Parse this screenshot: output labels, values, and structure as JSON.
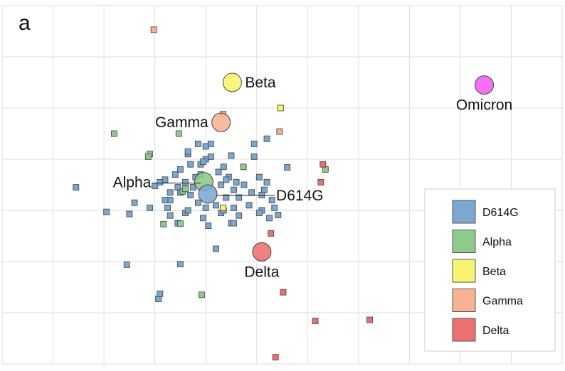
{
  "chart_data": {
    "type": "scatter",
    "panel_label": "a",
    "title": "",
    "xlabel": "",
    "ylabel": "",
    "xlim": [
      0,
      11
    ],
    "ylim": [
      0,
      7
    ],
    "grid": true,
    "legend_position": "bottom-right",
    "colors": {
      "D614G": "#7ba7d1",
      "Alpha": "#8ccb8a",
      "Beta": "#f8f46f",
      "Gamma": "#f7b392",
      "Delta": "#ee6f6f",
      "Omicron": "#f15cf0"
    },
    "legend": [
      {
        "name": "D614G"
      },
      {
        "name": "Alpha"
      },
      {
        "name": "Beta"
      },
      {
        "name": "Gamma"
      },
      {
        "name": "Delta"
      }
    ],
    "antigens": [
      {
        "name": "Beta",
        "x": 4.52,
        "y": 5.5,
        "label_side": "right"
      },
      {
        "name": "Gamma",
        "x": 4.3,
        "y": 4.72,
        "label_side": "left"
      },
      {
        "name": "Omicron",
        "x": 9.47,
        "y": 5.45,
        "label_side": "below"
      },
      {
        "name": "Alpha",
        "x": 3.96,
        "y": 3.56,
        "label_side": "left-line"
      },
      {
        "name": "D614G",
        "x": 4.04,
        "y": 3.32,
        "label_side": "right-line"
      },
      {
        "name": "Delta",
        "x": 5.1,
        "y": 2.19,
        "label_side": "below"
      }
    ],
    "sera": {
      "D614G": [
        [
          1.45,
          3.45
        ],
        [
          2.05,
          2.97
        ],
        [
          2.5,
          2.93
        ],
        [
          2.45,
          1.94
        ],
        [
          3.5,
          1.95
        ],
        [
          3.07,
          1.27
        ],
        [
          3.65,
          4.1
        ],
        [
          3.45,
          3.45
        ],
        [
          3.3,
          3.2
        ],
        [
          2.6,
          3.15
        ],
        [
          3.0,
          3.48
        ],
        [
          3.2,
          3.6
        ],
        [
          3.4,
          3.7
        ],
        [
          3.6,
          3.55
        ],
        [
          3.8,
          3.65
        ],
        [
          3.9,
          3.9
        ],
        [
          4.0,
          4.0
        ],
        [
          4.1,
          4.05
        ],
        [
          3.5,
          3.8
        ],
        [
          3.7,
          3.3
        ],
        [
          3.25,
          3.05
        ],
        [
          3.3,
          2.9
        ],
        [
          3.45,
          2.75
        ],
        [
          3.6,
          2.95
        ],
        [
          3.85,
          3.15
        ],
        [
          3.95,
          2.85
        ],
        [
          4.05,
          2.7
        ],
        [
          4.2,
          3.1
        ],
        [
          4.3,
          3.5
        ],
        [
          4.35,
          3.85
        ],
        [
          4.45,
          3.65
        ],
        [
          4.55,
          3.4
        ],
        [
          4.65,
          3.25
        ],
        [
          4.75,
          3.5
        ],
        [
          4.55,
          3.05
        ],
        [
          4.3,
          2.95
        ],
        [
          4.2,
          2.25
        ],
        [
          4.5,
          2.75
        ],
        [
          4.65,
          2.9
        ],
        [
          4.85,
          3.1
        ],
        [
          4.9,
          3.35
        ],
        [
          5.05,
          3.65
        ],
        [
          5.2,
          3.55
        ],
        [
          5.3,
          3.2
        ],
        [
          5.35,
          3.05
        ],
        [
          5.25,
          2.85
        ],
        [
          5.1,
          3.0
        ],
        [
          4.95,
          4.05
        ],
        [
          5.2,
          4.4
        ],
        [
          4.95,
          4.3
        ],
        [
          5.6,
          3.84
        ],
        [
          4.0,
          3.05
        ],
        [
          4.4,
          3.6
        ],
        [
          4.35,
          3.0
        ],
        [
          5.42,
          2.91
        ],
        [
          5.15,
          3.4
        ],
        [
          3.7,
          3.9
        ],
        [
          3.1,
          1.37
        ],
        [
          4.55,
          2.75
        ],
        [
          4.4,
          3.25
        ],
        [
          5.05,
          2.95
        ],
        [
          5.1,
          3.3
        ],
        [
          3.5,
          3.35
        ],
        [
          4.6,
          3.55
        ],
        [
          3.95,
          3.95
        ],
        [
          3.75,
          3.45
        ],
        [
          3.85,
          4.3
        ],
        [
          3.65,
          4.15
        ],
        [
          2.9,
          3.05
        ],
        [
          4.5,
          4.07
        ],
        [
          4.1,
          4.3
        ],
        [
          4.0,
          4.25
        ],
        [
          3.9,
          3.7
        ],
        [
          4.25,
          3.75
        ],
        [
          3.2,
          3.2
        ],
        [
          3.3,
          3.35
        ],
        [
          3.1,
          3.55
        ],
        [
          3.65,
          3.0
        ]
      ],
      "Alpha": [
        [
          2.2,
          4.5
        ],
        [
          3.47,
          4.5
        ],
        [
          2.9,
          4.1
        ],
        [
          2.87,
          4.05
        ],
        [
          4.74,
          3.85
        ],
        [
          3.55,
          3.37
        ],
        [
          3.17,
          2.73
        ],
        [
          3.5,
          2.74
        ],
        [
          3.92,
          1.35
        ],
        [
          6.35,
          3.8
        ],
        [
          3.6,
          3.42
        ]
      ],
      "Beta": [
        [
          5.47,
          5.0
        ],
        [
          4.34,
          3.05
        ]
      ],
      "Gamma": [
        [
          2.98,
          6.53
        ],
        [
          4.34,
          4.88
        ],
        [
          5.45,
          4.54
        ]
      ],
      "Delta": [
        [
          5.28,
          2.55
        ],
        [
          5.52,
          1.4
        ],
        [
          6.3,
          3.9
        ],
        [
          6.26,
          3.55
        ],
        [
          6.15,
          0.84
        ],
        [
          7.22,
          0.86
        ],
        [
          5.37,
          0.13
        ]
      ]
    }
  }
}
